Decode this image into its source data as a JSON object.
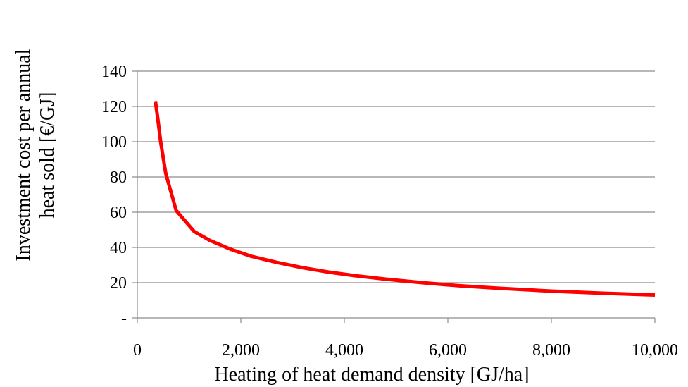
{
  "chart_data": {
    "type": "line",
    "title": "",
    "xlabel": "Heating of heat demand density  [GJ/ha]",
    "ylabel_lines": [
      "Investment cost per annual",
      "heat sold [€/GJ]"
    ],
    "xlim": [
      0,
      10000
    ],
    "ylim": [
      0,
      140
    ],
    "x_ticks": [
      0,
      2000,
      4000,
      6000,
      8000,
      10000
    ],
    "x_tick_labels": [
      "0",
      "2,000",
      "4,000",
      "6,000",
      "8,000",
      "10,000"
    ],
    "y_ticks": [
      0,
      20,
      40,
      60,
      80,
      100,
      120,
      140
    ],
    "y_tick_labels": [
      "-",
      "20",
      "40",
      "60",
      "80",
      "100",
      "120",
      "140"
    ],
    "grid": "horizontal",
    "legend": "none",
    "series": [
      {
        "color": "#ff0000",
        "x": [
          350,
          400,
          450,
          550,
          750,
          1100,
          1400,
          1800,
          2200,
          2700,
          3200,
          3700,
          4200,
          4800,
          5500,
          6200,
          7000,
          8000,
          9000,
          10000
        ],
        "y": [
          123,
          112,
          100,
          82,
          61,
          49,
          44,
          39,
          35,
          31.5,
          28.5,
          26,
          24,
          22,
          20,
          18.3,
          16.8,
          15.2,
          14,
          13
        ]
      }
    ]
  }
}
